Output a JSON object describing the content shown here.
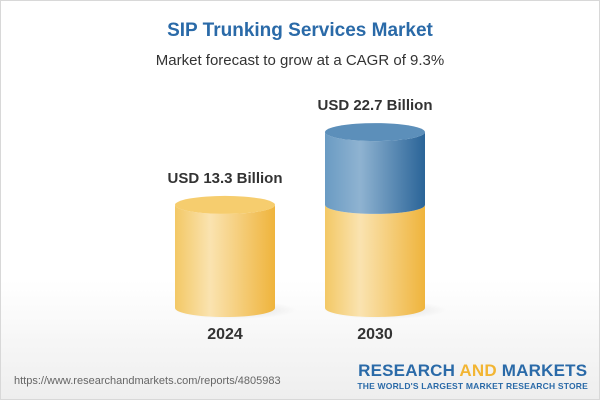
{
  "title": "SIP Trunking Services Market",
  "subtitle": "Market forecast to grow at a CAGR of 9.3%",
  "footer_url": "https://www.researchandmarkets.com/reports/4805983",
  "logo": {
    "part1": "RESEARCH ",
    "part2": "AND",
    "part3": " MARKETS",
    "tagline": "THE WORLD'S LARGEST MARKET RESEARCH STORE"
  },
  "colors": {
    "title": "#2a6aa8",
    "base": "#f2c25a",
    "growth": "#3f7bb0"
  },
  "chart_data": {
    "type": "bar",
    "style": "3d-cylinder",
    "title": "SIP Trunking Services Market",
    "subtitle": "Market forecast to grow at a CAGR of 9.3%",
    "categories": [
      "2024",
      "2030"
    ],
    "values": [
      13.3,
      22.7
    ],
    "data_labels": [
      "USD 13.3 Billion",
      "USD 22.7 Billion"
    ],
    "unit": "USD Billion",
    "grid": false
  }
}
